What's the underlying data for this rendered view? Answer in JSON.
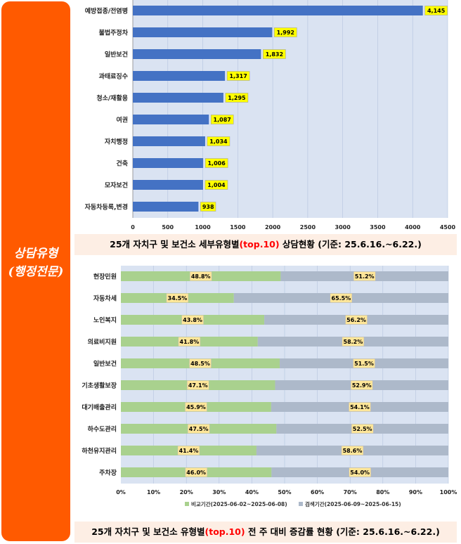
{
  "sidebar": {
    "line1": "상담유형",
    "line2": "(행정전문)"
  },
  "chart1": {
    "caption_pre": "25개 자치구 및 보건소 세부유형별",
    "caption_hl": "(top.10)",
    "caption_post": " 상담현황  (기준: 25.6.16.~6.22.)"
  },
  "chart2": {
    "caption_pre": "25개 자치구 및 보건소 유형별",
    "caption_hl": "(top.10)",
    "caption_post": " 전 주 대비 증감률 현황 (기준: 25.6.16.~6.22.)"
  },
  "chart_data": [
    {
      "type": "bar",
      "orientation": "horizontal",
      "categories": [
        "예방접종/전염병",
        "불법주정차",
        "일반보건",
        "과태료징수",
        "청소/재활용",
        "여권",
        "자치행정",
        "건축",
        "모자보건",
        "자동차등록,변경"
      ],
      "values": [
        4145,
        1992,
        1832,
        1317,
        1295,
        1087,
        1034,
        1006,
        1004,
        938
      ],
      "value_labels": [
        "4,145",
        "1,992",
        "1,832",
        "1,317",
        "1,295",
        "1,087",
        "1,034",
        "1,006",
        "1,004",
        "938"
      ],
      "xlim": [
        0,
        4500
      ],
      "xticks": [
        "0",
        "500",
        "1000",
        "1500",
        "2000",
        "2500",
        "3000",
        "3500",
        "4000",
        "4500"
      ],
      "colors": {
        "bar": "#4472c4",
        "label_bg": "#ffff00"
      },
      "title": "25개 자치구 및 보건소 세부유형별(top.10) 상담현황  (기준: 25.6.16.~6.22.)"
    },
    {
      "type": "bar",
      "orientation": "horizontal",
      "stacked": "percent",
      "categories": [
        "현장민원",
        "자동차세",
        "노인복지",
        "의료비지원",
        "일반보건",
        "기초생활보장",
        "대기배출관리",
        "하수도관리",
        "하천유지관리",
        "주차장"
      ],
      "series": [
        {
          "name": "비교기간(2025-06-02~2025-06-08)",
          "values": [
            48.8,
            34.5,
            43.8,
            41.8,
            48.5,
            47.1,
            45.9,
            47.5,
            41.4,
            46.0
          ],
          "labels": [
            "48.8%",
            "34.5%",
            "43.8%",
            "41.8%",
            "48.5%",
            "47.1%",
            "45.9%",
            "47.5%",
            "41.4%",
            "46.0%"
          ],
          "color": "#a9d18e"
        },
        {
          "name": "검색기간(2025-06-09~2025-06-15)",
          "values": [
            51.2,
            65.5,
            56.2,
            58.2,
            51.5,
            52.9,
            54.1,
            52.5,
            58.6,
            54.0
          ],
          "labels": [
            "51.2%",
            "65.5%",
            "56.2%",
            "58.2%",
            "51.5%",
            "52.9%",
            "54.1%",
            "52.5%",
            "58.6%",
            "54.0%"
          ],
          "color": "#adb9ca"
        }
      ],
      "xlim": [
        0,
        100
      ],
      "xticks": [
        "0%",
        "10%",
        "20%",
        "30%",
        "40%",
        "50%",
        "60%",
        "70%",
        "80%",
        "90%",
        "100%"
      ],
      "legend_position": "bottom",
      "colors": {
        "label_bg": "#ffe699"
      },
      "title": "25개 자치구 및 보건소 유형별(top.10) 전 주 대비 증감률 현황 (기준: 25.6.16.~6.22.)"
    }
  ]
}
